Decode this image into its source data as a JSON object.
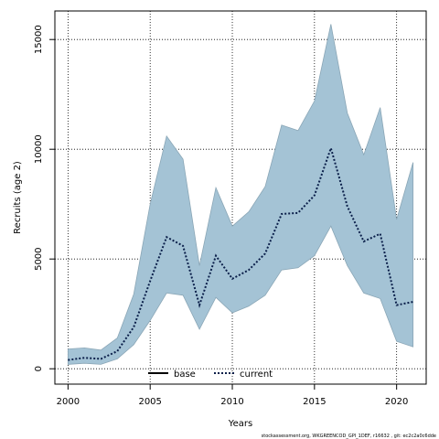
{
  "chart_data": {
    "type": "area",
    "xlabel": "Years",
    "ylabel": "Recruits (age 2)",
    "xlim": [
      1999.2,
      2021.8
    ],
    "ylim": [
      -700,
      16300
    ],
    "x_ticks": [
      2000,
      2005,
      2010,
      2015,
      2020
    ],
    "y_ticks": [
      0,
      5000,
      10000,
      15000
    ],
    "grid": true,
    "x": [
      2000,
      2001,
      2002,
      2003,
      2004,
      2005,
      2006,
      2007,
      2008,
      2009,
      2010,
      2011,
      2012,
      2013,
      2014,
      2015,
      2016,
      2017,
      2018,
      2019,
      2020,
      2021
    ],
    "band": {
      "upper": [
        900,
        950,
        850,
        1400,
        3400,
        7500,
        10600,
        9550,
        4700,
        8250,
        6500,
        7150,
        8300,
        11100,
        10850,
        12200,
        15700,
        11650,
        9750,
        11900,
        6800,
        9400
      ],
      "lower": [
        200,
        250,
        200,
        450,
        1100,
        2200,
        3450,
        3350,
        1800,
        3250,
        2550,
        2850,
        3350,
        4500,
        4600,
        5150,
        6500,
        4700,
        3450,
        3200,
        1250,
        1000
      ]
    },
    "series": [
      {
        "name": "current",
        "values": [
          400,
          500,
          450,
          800,
          1900,
          4000,
          6000,
          5600,
          2900,
          5150,
          4100,
          4500,
          5250,
          7050,
          7100,
          7900,
          10050,
          7400,
          5800,
          6150,
          2900,
          3050
        ]
      }
    ],
    "legend": {
      "placement": "bottom-center",
      "entries": [
        {
          "label": "base",
          "style": "solid",
          "color": "#000000"
        },
        {
          "label": "current",
          "style": "dotted",
          "color": "#0b1f4a"
        }
      ]
    },
    "colors": {
      "band_fill": "#a4c3d5",
      "band_stroke": "#8aa6b6",
      "current_line": "#0b1f4a",
      "grid": "#000000"
    },
    "footnote": "stockassessment.org, WKGREENCOD_GPI_1DEF, r16632 , git: ec2c2a0c6dde"
  }
}
